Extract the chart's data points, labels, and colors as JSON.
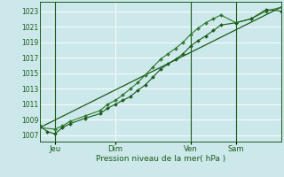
{
  "background_color": "#cce8ea",
  "grid_color": "#b8d8da",
  "plot_bg": "#cce8ea",
  "line_color_dark": "#1a5c1a",
  "line_color_mid": "#2d7a2d",
  "ylabel_text": "Pression niveau de la mer( hPa )",
  "yticks": [
    1007,
    1009,
    1011,
    1013,
    1015,
    1017,
    1019,
    1021,
    1023
  ],
  "ylim": [
    1006.2,
    1024.2
  ],
  "xlim": [
    0,
    96
  ],
  "xtick_positions": [
    6,
    30,
    60,
    78
  ],
  "xtick_labels": [
    "Jeu",
    "Dim",
    "Ven",
    "Sam"
  ],
  "vline_positions": [
    6,
    60,
    78
  ],
  "series1_x": [
    0,
    3,
    6,
    9,
    12,
    18,
    24,
    27,
    30,
    33,
    36,
    39,
    42,
    45,
    48,
    51,
    54,
    57,
    60,
    63,
    66,
    69,
    72,
    78,
    84,
    90,
    96
  ],
  "series1_y": [
    1008.2,
    1007.5,
    1007.2,
    1008.0,
    1008.5,
    1009.2,
    1009.8,
    1010.5,
    1011.0,
    1011.5,
    1012.0,
    1012.8,
    1013.5,
    1014.5,
    1015.5,
    1016.2,
    1016.8,
    1017.5,
    1018.5,
    1019.2,
    1019.8,
    1020.5,
    1021.2,
    1021.5,
    1022.0,
    1023.2,
    1023.0
  ],
  "series2_x": [
    0,
    6,
    9,
    12,
    18,
    24,
    27,
    30,
    33,
    36,
    39,
    42,
    45,
    48,
    51,
    54,
    57,
    60,
    63,
    66,
    69,
    72,
    78,
    84,
    90,
    96
  ],
  "series2_y": [
    1008.0,
    1007.8,
    1008.2,
    1008.8,
    1009.5,
    1010.2,
    1011.0,
    1011.5,
    1012.2,
    1013.0,
    1013.8,
    1014.8,
    1015.8,
    1016.8,
    1017.5,
    1018.2,
    1019.0,
    1020.0,
    1020.8,
    1021.5,
    1022.0,
    1022.5,
    1021.5,
    1022.0,
    1023.0,
    1023.5
  ],
  "series3_x": [
    0,
    96
  ],
  "series3_y": [
    1008.0,
    1023.5
  ],
  "marker": "D",
  "markersize": 2.0
}
